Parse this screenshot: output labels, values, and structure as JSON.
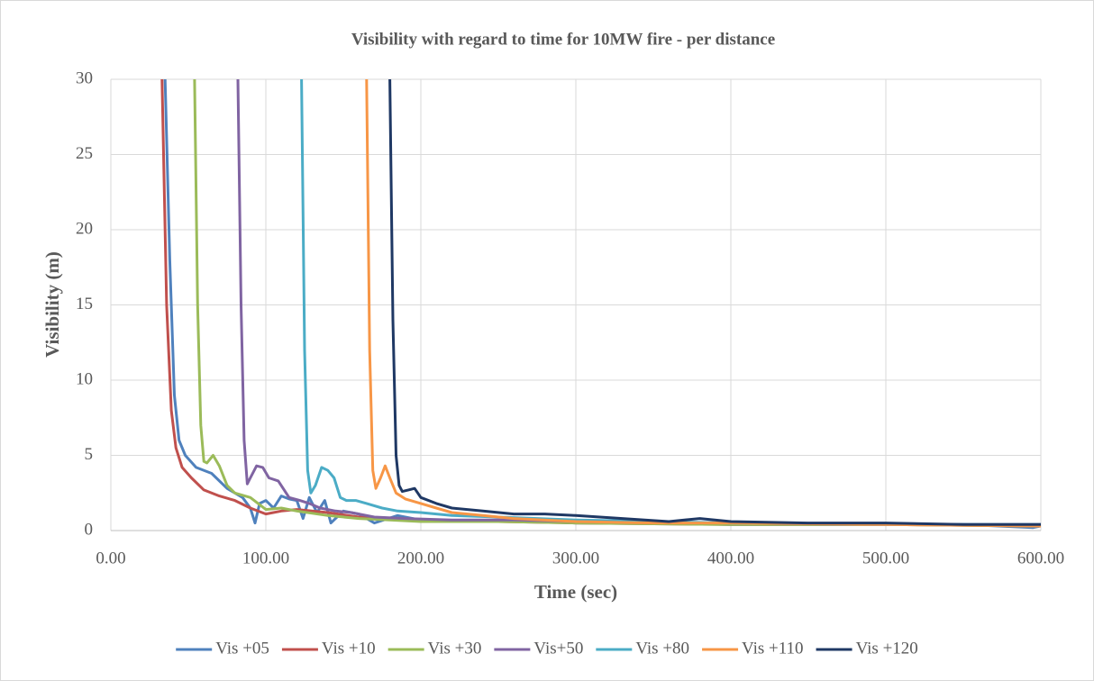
{
  "chart_data": {
    "type": "line",
    "title": "Visibility with regard to time for 10MW fire - per distance",
    "x_label": "Time (sec)",
    "y_label": "Visibility (m)",
    "xlim": [
      0,
      600
    ],
    "xticks": [
      {
        "value": 0,
        "label": "0.00"
      },
      {
        "value": 100,
        "label": "100.00"
      },
      {
        "value": 200,
        "label": "200.00"
      },
      {
        "value": 300,
        "label": "300.00"
      },
      {
        "value": 400,
        "label": "400.00"
      },
      {
        "value": 500,
        "label": "500.00"
      },
      {
        "value": 600,
        "label": "600.00"
      }
    ],
    "ylim": [
      0,
      30
    ],
    "yticks": [
      0,
      5,
      10,
      15,
      20,
      25,
      30
    ],
    "grid": true,
    "legend": "bottom",
    "series": [
      {
        "name": "Vis +05",
        "color": "#4f81bd",
        "x": [
          35,
          38,
          41,
          44,
          48,
          55,
          65,
          75,
          85,
          90,
          93,
          96,
          100,
          105,
          110,
          115,
          120,
          124,
          128,
          133,
          138,
          142,
          150,
          160,
          170,
          185,
          200,
          220,
          250,
          300,
          350,
          400,
          450,
          500,
          550,
          595,
          600
        ],
        "values": [
          30,
          18,
          9,
          6,
          5,
          4.2,
          3.8,
          2.8,
          2.2,
          1.5,
          0.5,
          1.8,
          2,
          1.5,
          2.3,
          2.1,
          2,
          0.8,
          2.2,
          1.2,
          2,
          0.5,
          1.3,
          1.1,
          0.5,
          1,
          0.7,
          0.6,
          0.7,
          0.5,
          0.5,
          0.4,
          0.4,
          0.4,
          0.4,
          0.2,
          0.3
        ]
      },
      {
        "name": "Vis +10",
        "color": "#c0504d",
        "x": [
          33,
          36,
          39,
          42,
          46,
          52,
          60,
          70,
          80,
          90,
          100,
          110,
          120,
          140,
          160,
          180,
          200,
          250,
          300,
          400,
          500,
          600
        ],
        "values": [
          30,
          15,
          8,
          5.5,
          4.2,
          3.5,
          2.7,
          2.3,
          2,
          1.5,
          1.1,
          1.3,
          1.4,
          1.2,
          0.9,
          0.8,
          0.7,
          0.6,
          0.5,
          0.4,
          0.4,
          0.3
        ]
      },
      {
        "name": "Vis +30",
        "color": "#9bbb59",
        "x": [
          54,
          56,
          58,
          60,
          62,
          66,
          70,
          75,
          80,
          90,
          100,
          110,
          120,
          140,
          160,
          180,
          200,
          250,
          300,
          400,
          500,
          600
        ],
        "values": [
          30,
          15,
          7,
          4.6,
          4.5,
          5,
          4.3,
          3,
          2.5,
          2.2,
          1.4,
          1.5,
          1.3,
          1,
          0.8,
          0.7,
          0.6,
          0.6,
          0.5,
          0.4,
          0.4,
          0.3
        ]
      },
      {
        "name": "Vis+50",
        "color": "#8064a2",
        "x": [
          82,
          84,
          86,
          88,
          90,
          94,
          98,
          102,
          108,
          115,
          122,
          128,
          135,
          145,
          155,
          170,
          190,
          220,
          260,
          300,
          400,
          500,
          600
        ],
        "values": [
          30,
          15,
          6,
          3.1,
          3.5,
          4.3,
          4.2,
          3.5,
          3.3,
          2.2,
          2,
          1.8,
          1.5,
          1.3,
          1.2,
          0.9,
          0.8,
          0.7,
          0.7,
          0.6,
          0.5,
          0.4,
          0.4
        ]
      },
      {
        "name": "Vis +80",
        "color": "#4bacc6",
        "x": [
          123,
          125,
          127,
          129,
          132,
          136,
          140,
          144,
          148,
          152,
          158,
          165,
          175,
          185,
          200,
          220,
          250,
          300,
          400,
          500,
          600
        ],
        "values": [
          30,
          12,
          4,
          2.5,
          3,
          4.2,
          4,
          3.5,
          2.2,
          2,
          2,
          1.8,
          1.5,
          1.3,
          1.2,
          1,
          0.9,
          0.7,
          0.5,
          0.4,
          0.4
        ]
      },
      {
        "name": "Vis +110",
        "color": "#f79646",
        "x": [
          165,
          167,
          169,
          171,
          174,
          177,
          180,
          184,
          190,
          200,
          210,
          220,
          240,
          260,
          300,
          350,
          400,
          500,
          600
        ],
        "values": [
          30,
          12,
          4,
          2.8,
          3.5,
          4.3,
          3.5,
          2.5,
          2.1,
          1.8,
          1.5,
          1.2,
          1,
          0.8,
          0.6,
          0.5,
          0.5,
          0.4,
          0.3
        ]
      },
      {
        "name": "Vis +120",
        "color": "#1f3864",
        "x": [
          180,
          182,
          184,
          186,
          188,
          192,
          196,
          200,
          210,
          220,
          240,
          260,
          280,
          300,
          330,
          360,
          380,
          400,
          450,
          500,
          550,
          600
        ],
        "values": [
          30,
          14,
          5,
          3,
          2.6,
          2.7,
          2.8,
          2.2,
          1.8,
          1.5,
          1.3,
          1.1,
          1.1,
          1,
          0.8,
          0.6,
          0.8,
          0.6,
          0.5,
          0.5,
          0.4,
          0.4
        ]
      }
    ]
  }
}
